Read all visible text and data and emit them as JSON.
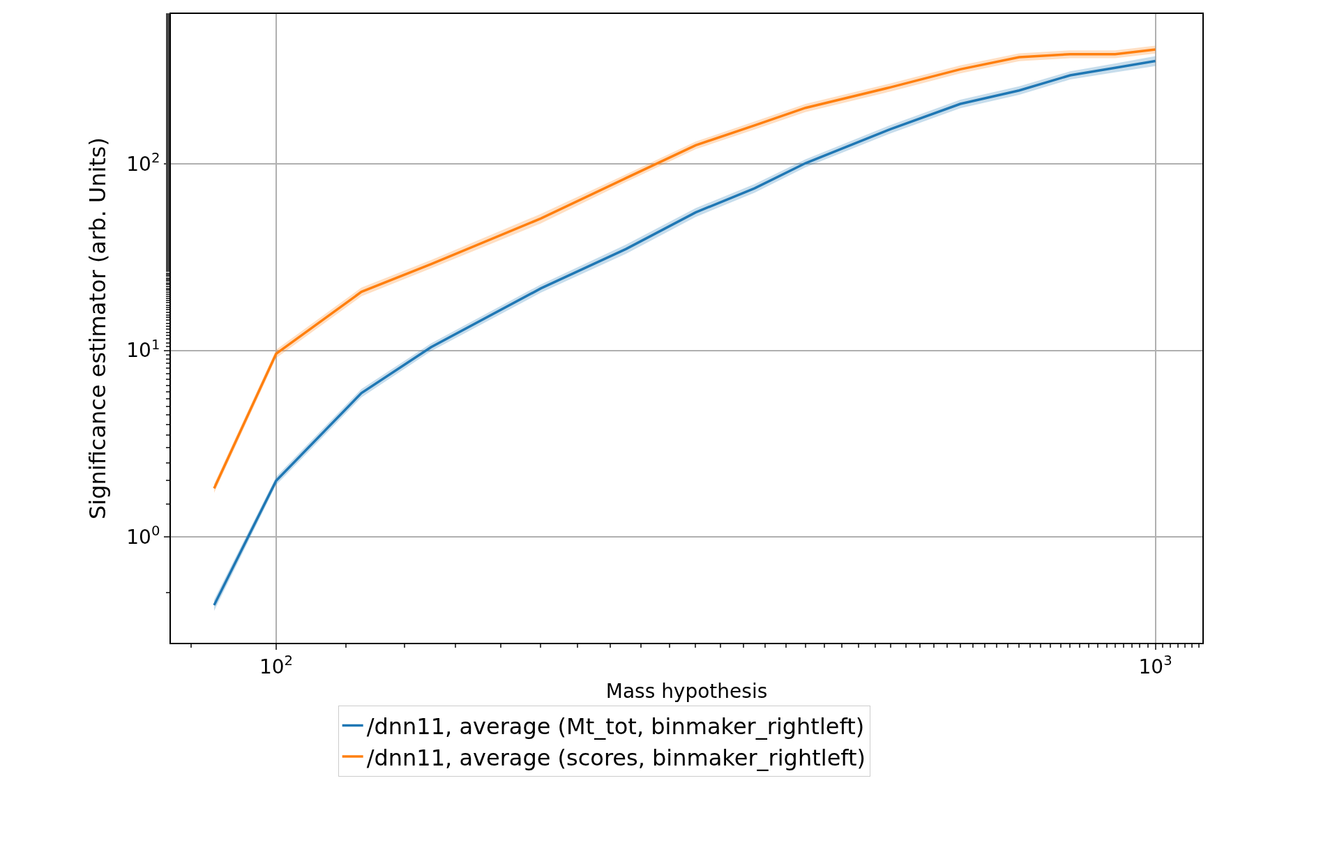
{
  "chart_data": {
    "type": "line",
    "xlabel": "Mass hypothesis",
    "ylabel": "Significance estimator (arb. Units)",
    "x": [
      85,
      100,
      125,
      150,
      200,
      250,
      300,
      350,
      400,
      500,
      600,
      700,
      800,
      900,
      1000
    ],
    "series": [
      {
        "name": "/dnn11, average (Mt_tot, binmaker_rightleft)",
        "color": "#1f77b4",
        "values": [
          0.43,
          2.0,
          5.9,
          10.4,
          21.5,
          35,
          55,
          74,
          101,
          154,
          210,
          248,
          299,
          328,
          357
        ],
        "lower": [
          0.4,
          1.9,
          5.6,
          9.9,
          20.4,
          33,
          52,
          70,
          96,
          146,
          199,
          235,
          284,
          310,
          335
        ],
        "upper": [
          0.46,
          2.1,
          6.2,
          10.9,
          22.6,
          37,
          58,
          78,
          106,
          162,
          221,
          261,
          314,
          346,
          379
        ]
      },
      {
        "name": "/dnn11, average (scores, binmaker_rightleft)",
        "color": "#ff7f0e",
        "values": [
          1.82,
          9.6,
          20.6,
          29,
          51,
          84,
          126,
          161,
          200,
          258,
          322,
          374,
          388,
          388,
          411
        ],
        "lower": [
          1.72,
          9.1,
          19.5,
          27.5,
          48,
          80,
          120,
          153,
          190,
          245,
          306,
          356,
          369,
          369,
          391
        ],
        "upper": [
          1.92,
          10.1,
          21.7,
          30.5,
          54,
          88,
          132,
          169,
          210,
          271,
          338,
          392,
          407,
          407,
          431
        ]
      }
    ],
    "log": "xy",
    "xlim": [
      75.9,
      1131
    ],
    "ylim": [
      0.27,
      638
    ],
    "xticks": [
      {
        "value": 100,
        "label": "10$^{2}$"
      },
      {
        "value": 1000,
        "label": "10$^{3}$"
      }
    ],
    "yticks": [
      {
        "value": 1,
        "label": "10$^{0}$"
      },
      {
        "value": 10,
        "label": "10$^{1}$"
      },
      {
        "value": 100,
        "label": "10$^{2}$"
      }
    ],
    "grid": true,
    "legend": "bottom",
    "marker": "none",
    "line_style": "solid"
  }
}
